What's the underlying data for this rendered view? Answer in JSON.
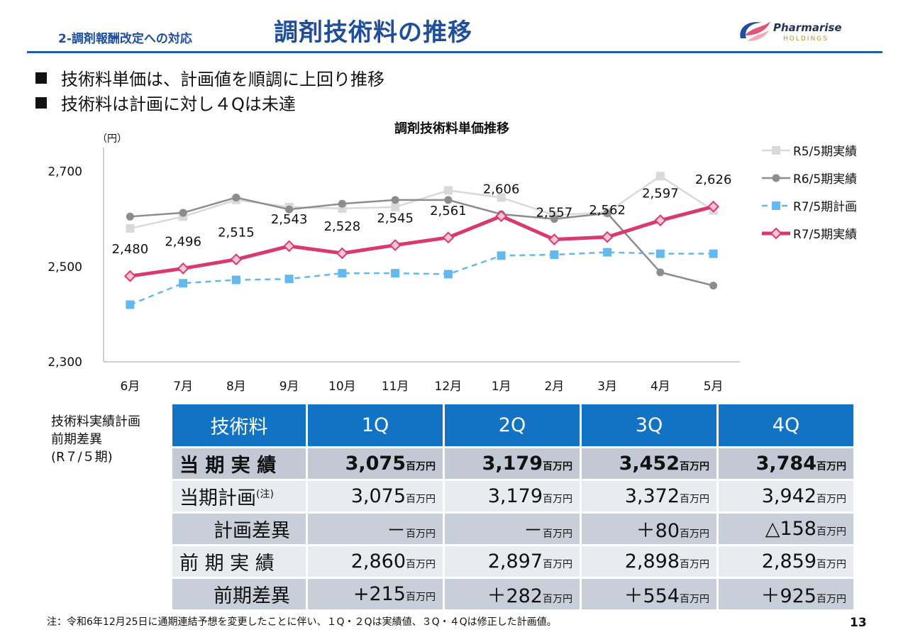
{
  "header": {
    "section": "2-調剤報酬改定への対応",
    "title": "調剤技術料の推移",
    "logo_name": "Pharmarise",
    "logo_sub": "HOLDINGS"
  },
  "bullets": [
    "技術料単価は、計画値を順調に上回り推移",
    "技術料は計画に対し４Qは未達"
  ],
  "colors": {
    "accent": "#1f4f9c",
    "table_header": "#1272c4",
    "series_r5": "#d9d9d9",
    "series_r6": "#8c8c8c",
    "series_r7_plan": "#63b8ee",
    "series_r7": "#d8396f"
  },
  "chart_data": {
    "type": "line",
    "title": "調剤技術料単価推移",
    "unit_label": "（円）",
    "categories": [
      "6月",
      "7月",
      "8月",
      "9月",
      "10月",
      "11月",
      "12月",
      "1月",
      "2月",
      "3月",
      "4月",
      "5月"
    ],
    "ylim": [
      2300,
      2750
    ],
    "yticks": [
      "2,300",
      "2,500",
      "2,700"
    ],
    "ytick_values": [
      2300,
      2500,
      2700
    ],
    "legend_position": "right",
    "series": [
      {
        "name": "R5/5期実績",
        "color": "#d9d9d9",
        "marker": "square",
        "dash": false,
        "values": [
          2580,
          2605,
          2640,
          2625,
          2622,
          2625,
          2660,
          2645,
          2608,
          2614,
          2690,
          2618
        ]
      },
      {
        "name": "R6/5期実績",
        "color": "#8c8c8c",
        "marker": "circle",
        "dash": false,
        "values": [
          2605,
          2613,
          2645,
          2620,
          2632,
          2640,
          2640,
          2610,
          2600,
          2612,
          2488,
          2460
        ]
      },
      {
        "name": "R7/5期計画",
        "color": "#63b8ee",
        "marker": "square",
        "dash": true,
        "values": [
          2420,
          2465,
          2472,
          2474,
          2486,
          2486,
          2484,
          2523,
          2525,
          2530,
          2527,
          2527
        ]
      },
      {
        "name": "R7/5期実績",
        "color": "#d8396f",
        "marker": "diamond",
        "dash": false,
        "values": [
          2480,
          2496,
          2515,
          2543,
          2528,
          2545,
          2561,
          2606,
          2557,
          2562,
          2597,
          2626
        ]
      }
    ],
    "data_labels": [
      "2,480",
      "2,496",
      "2,515",
      "2,543",
      "2,528",
      "2,545",
      "2,561",
      "2,606",
      "2,557",
      "2,562",
      "2,597",
      "2,626"
    ]
  },
  "table": {
    "side_label": [
      "技術料実績計画",
      "前期差異",
      "(R７/５期)"
    ],
    "header": [
      "技術料",
      "1Q",
      "2Q",
      "3Q",
      "4Q"
    ],
    "unit": "百万円",
    "plan_note": "(注)",
    "rows": [
      {
        "label": "当 期 実 績",
        "values": [
          "3,075",
          "3,179",
          "3,452",
          "3,784"
        ]
      },
      {
        "label": "当期計画",
        "values": [
          "3,075",
          "3,179",
          "3,372",
          "3,942"
        ]
      },
      {
        "label": "計画差異",
        "values": [
          "－",
          "－",
          "＋80",
          "△158"
        ]
      },
      {
        "label": "前 期 実 績",
        "values": [
          "2,860",
          "2,897",
          "2,898",
          "2,859"
        ]
      },
      {
        "label": "前期差異",
        "values": [
          "+215",
          "＋282",
          "＋554",
          "＋925"
        ]
      }
    ]
  },
  "footnote": "注：令和6年12月25日に通期連結予想を変更したことに伴い、１Q・２Qは実績値、３Q・４Qは修正した計画値。",
  "page_number": "13"
}
